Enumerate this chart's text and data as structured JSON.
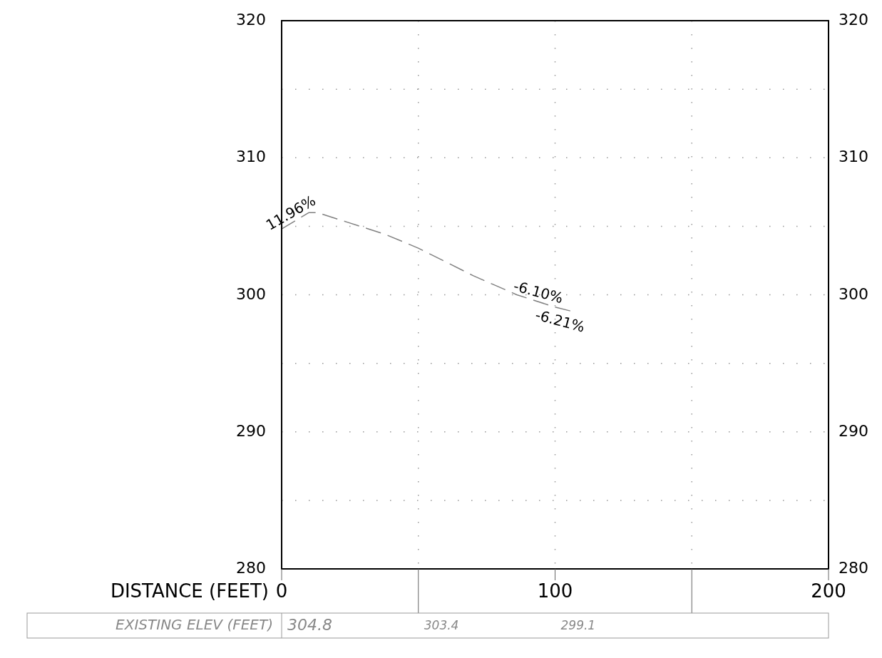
{
  "chart_data": {
    "type": "line",
    "xlabel": "DISTANCE (FEET)",
    "x": [
      0,
      10,
      13,
      24,
      38,
      50,
      60,
      70,
      86,
      100,
      106
    ],
    "series": [
      {
        "color": "#808080",
        "values": [
          304.8,
          306.0,
          306.0,
          305.3,
          304.4,
          303.4,
          302.4,
          301.4,
          300.0,
          299.1,
          298.8
        ]
      }
    ],
    "xlim": [
      0,
      200
    ],
    "xticks": [
      0,
      {
        "value": 50,
        "label": null
      },
      100,
      {
        "value": 150,
        "label": null
      },
      200
    ],
    "ylim": [
      280,
      320
    ],
    "yticks": [
      280,
      {
        "value": 285,
        "label": null
      },
      290,
      {
        "value": 295,
        "label": null
      },
      300,
      {
        "value": 305,
        "label": null
      },
      310,
      {
        "value": 315,
        "label": null
      },
      320
    ],
    "y2lim": [
      280,
      320
    ],
    "y2ticks": [
      280,
      290,
      300,
      310,
      320
    ],
    "grid": true,
    "line_style": "dashed",
    "marker": "none",
    "annotations": [
      {
        "text": "11.96%",
        "x": 5,
        "y": 305.4
      },
      {
        "text": "-6.10%",
        "x": 93,
        "y": 299.55
      },
      {
        "text": "-6.21%",
        "x": 103,
        "y": 298.95
      },
      "EXISTING ELEV (FEET)",
      "304.8",
      "303.4",
      "299.1"
    ]
  }
}
